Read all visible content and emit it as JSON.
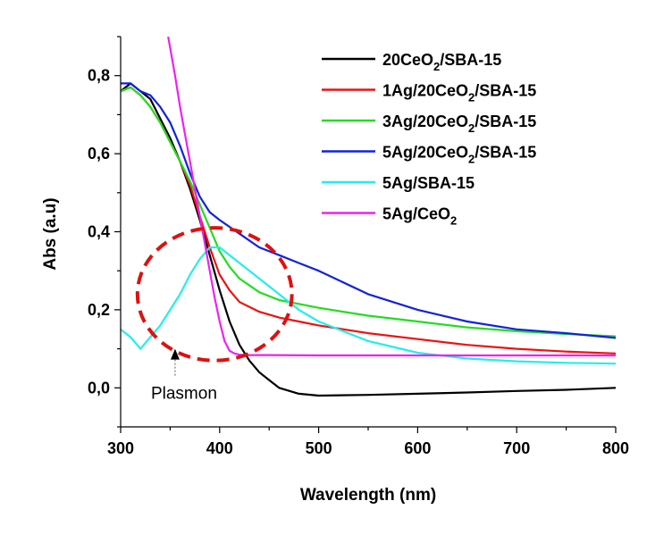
{
  "chart_data": {
    "type": "line",
    "title": "",
    "xlabel": "Wavelength (nm)",
    "ylabel": "Abs (a.u)",
    "xlim": [
      300,
      800
    ],
    "ylim": [
      -0.1,
      0.9
    ],
    "grid": false,
    "legend_position": "top-right",
    "x_ticks": [
      300,
      400,
      500,
      600,
      700,
      800
    ],
    "x_tick_labels": [
      "300",
      "400",
      "500",
      "600",
      "700",
      "800"
    ],
    "y_ticks": [
      0.0,
      0.2,
      0.4,
      0.6,
      0.8
    ],
    "y_tick_labels": [
      "0,0",
      "0,2",
      "0,4",
      "0,6",
      "0,8"
    ],
    "series": [
      {
        "name": "20CeO2/SBA-15",
        "label_parts": [
          [
            "20CeO",
            ""
          ],
          [
            "2",
            "sub"
          ],
          [
            "/SBA-15",
            ""
          ]
        ],
        "color": "#000000",
        "x": [
          300,
          310,
          320,
          330,
          340,
          350,
          360,
          370,
          380,
          390,
          400,
          410,
          420,
          430,
          440,
          450,
          460,
          480,
          500,
          550,
          600,
          650,
          700,
          750,
          800
        ],
        "y": [
          0.76,
          0.78,
          0.76,
          0.74,
          0.69,
          0.64,
          0.58,
          0.51,
          0.43,
          0.34,
          0.25,
          0.17,
          0.11,
          0.07,
          0.04,
          0.02,
          0.0,
          -0.015,
          -0.02,
          -0.018,
          -0.015,
          -0.012,
          -0.008,
          -0.005,
          0.0
        ]
      },
      {
        "name": "1Ag/20CeO2/SBA-15",
        "label_parts": [
          [
            "1Ag/20CeO",
            ""
          ],
          [
            "2",
            "sub"
          ],
          [
            "/SBA-15",
            ""
          ]
        ],
        "color": "#ee1111",
        "x": [
          300,
          310,
          320,
          330,
          340,
          350,
          360,
          370,
          380,
          390,
          400,
          410,
          420,
          440,
          460,
          480,
          500,
          550,
          600,
          650,
          700,
          750,
          800
        ],
        "y": [
          0.76,
          0.77,
          0.75,
          0.72,
          0.68,
          0.63,
          0.58,
          0.52,
          0.44,
          0.36,
          0.29,
          0.25,
          0.22,
          0.195,
          0.18,
          0.17,
          0.16,
          0.14,
          0.125,
          0.11,
          0.1,
          0.093,
          0.088
        ]
      },
      {
        "name": "3Ag/20CeO2/SBA-15",
        "label_parts": [
          [
            "3Ag/20CeO",
            ""
          ],
          [
            "2",
            "sub"
          ],
          [
            "/SBA-15",
            ""
          ]
        ],
        "color": "#22dd22",
        "x": [
          300,
          310,
          320,
          330,
          340,
          350,
          360,
          370,
          380,
          390,
          400,
          410,
          420,
          440,
          460,
          480,
          500,
          550,
          600,
          650,
          700,
          750,
          800
        ],
        "y": [
          0.76,
          0.77,
          0.75,
          0.72,
          0.68,
          0.63,
          0.58,
          0.53,
          0.47,
          0.41,
          0.35,
          0.31,
          0.28,
          0.245,
          0.225,
          0.215,
          0.205,
          0.185,
          0.17,
          0.155,
          0.145,
          0.138,
          0.132
        ]
      },
      {
        "name": "5Ag/20CeO2/SBA-15",
        "label_parts": [
          [
            "5Ag/20CeO",
            ""
          ],
          [
            "2",
            "sub"
          ],
          [
            "/SBA-15",
            ""
          ]
        ],
        "color": "#1122dd",
        "x": [
          300,
          310,
          320,
          330,
          340,
          350,
          360,
          370,
          380,
          390,
          400,
          420,
          440,
          460,
          480,
          500,
          550,
          600,
          650,
          700,
          750,
          800
        ],
        "y": [
          0.78,
          0.78,
          0.76,
          0.75,
          0.72,
          0.68,
          0.62,
          0.55,
          0.49,
          0.45,
          0.43,
          0.395,
          0.36,
          0.34,
          0.32,
          0.3,
          0.24,
          0.2,
          0.17,
          0.15,
          0.14,
          0.128
        ]
      },
      {
        "name": "5Ag/SBA-15",
        "label_parts": [
          [
            "5Ag/SBA-15",
            ""
          ]
        ],
        "color": "#22eeee",
        "x": [
          300,
          310,
          320,
          330,
          340,
          350,
          360,
          370,
          380,
          390,
          400,
          410,
          420,
          440,
          460,
          480,
          500,
          550,
          600,
          650,
          700,
          750,
          800
        ],
        "y": [
          0.15,
          0.13,
          0.1,
          0.13,
          0.16,
          0.2,
          0.24,
          0.29,
          0.33,
          0.36,
          0.36,
          0.34,
          0.32,
          0.28,
          0.24,
          0.2,
          0.17,
          0.12,
          0.09,
          0.075,
          0.068,
          0.064,
          0.062
        ]
      },
      {
        "name": "5Ag/CeO2",
        "label_parts": [
          [
            "5Ag/CeO",
            ""
          ],
          [
            "2",
            "sub"
          ]
        ],
        "color": "#ee22ee",
        "x": [
          348,
          355,
          360,
          365,
          370,
          375,
          380,
          385,
          390,
          395,
          400,
          405,
          410,
          415,
          420,
          430,
          450,
          500,
          600,
          700,
          800
        ],
        "y": [
          0.9,
          0.8,
          0.72,
          0.65,
          0.58,
          0.51,
          0.44,
          0.37,
          0.3,
          0.23,
          0.17,
          0.12,
          0.095,
          0.088,
          0.085,
          0.084,
          0.084,
          0.083,
          0.083,
          0.083,
          0.083
        ]
      }
    ],
    "annotations": [
      {
        "text": "Plasmon",
        "arrow_to": [
          355,
          0.1
        ]
      }
    ],
    "highlight_ellipse": {
      "center": [
        395,
        0.24
      ],
      "rx_nm": 78,
      "ry_abs": 0.17,
      "color": "#dd1111",
      "style": "dashed"
    }
  }
}
